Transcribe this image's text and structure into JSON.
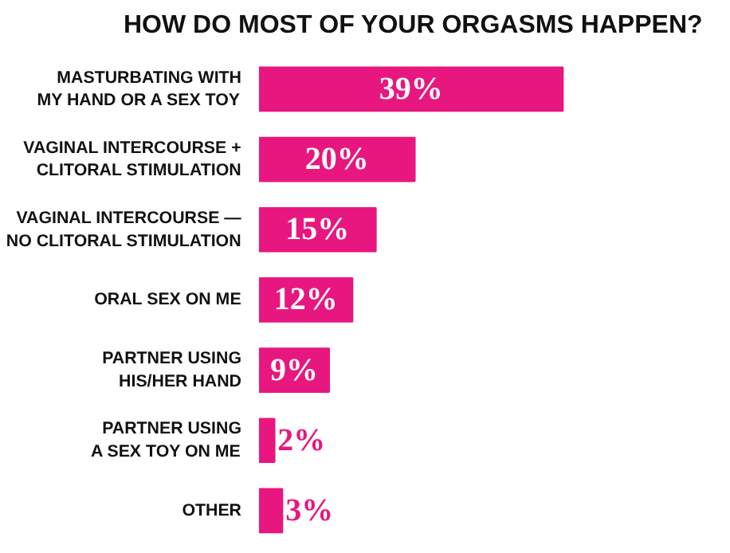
{
  "chart_data": {
    "type": "bar",
    "orientation": "horizontal",
    "title": "HOW DO MOST OF YOUR ORGASMS HAPPEN?",
    "categories": [
      "MASTURBATING WITH\nMY HAND OR A SEX TOY",
      "VAGINAL INTERCOURSE +\nCLITORAL STIMULATION",
      "VAGINAL INTERCOURSE —\nNO CLITORAL STIMULATION",
      "ORAL SEX ON ME",
      "PARTNER USING\nHIS/HER HAND",
      "PARTNER USING\nA SEX TOY ON ME",
      "OTHER"
    ],
    "values": [
      39,
      20,
      15,
      12,
      9,
      2,
      3
    ],
    "value_labels": [
      "39%",
      "20%",
      "15%",
      "12%",
      "9%",
      "2%",
      "3%"
    ],
    "color": "#e8177f",
    "grid": false
  }
}
